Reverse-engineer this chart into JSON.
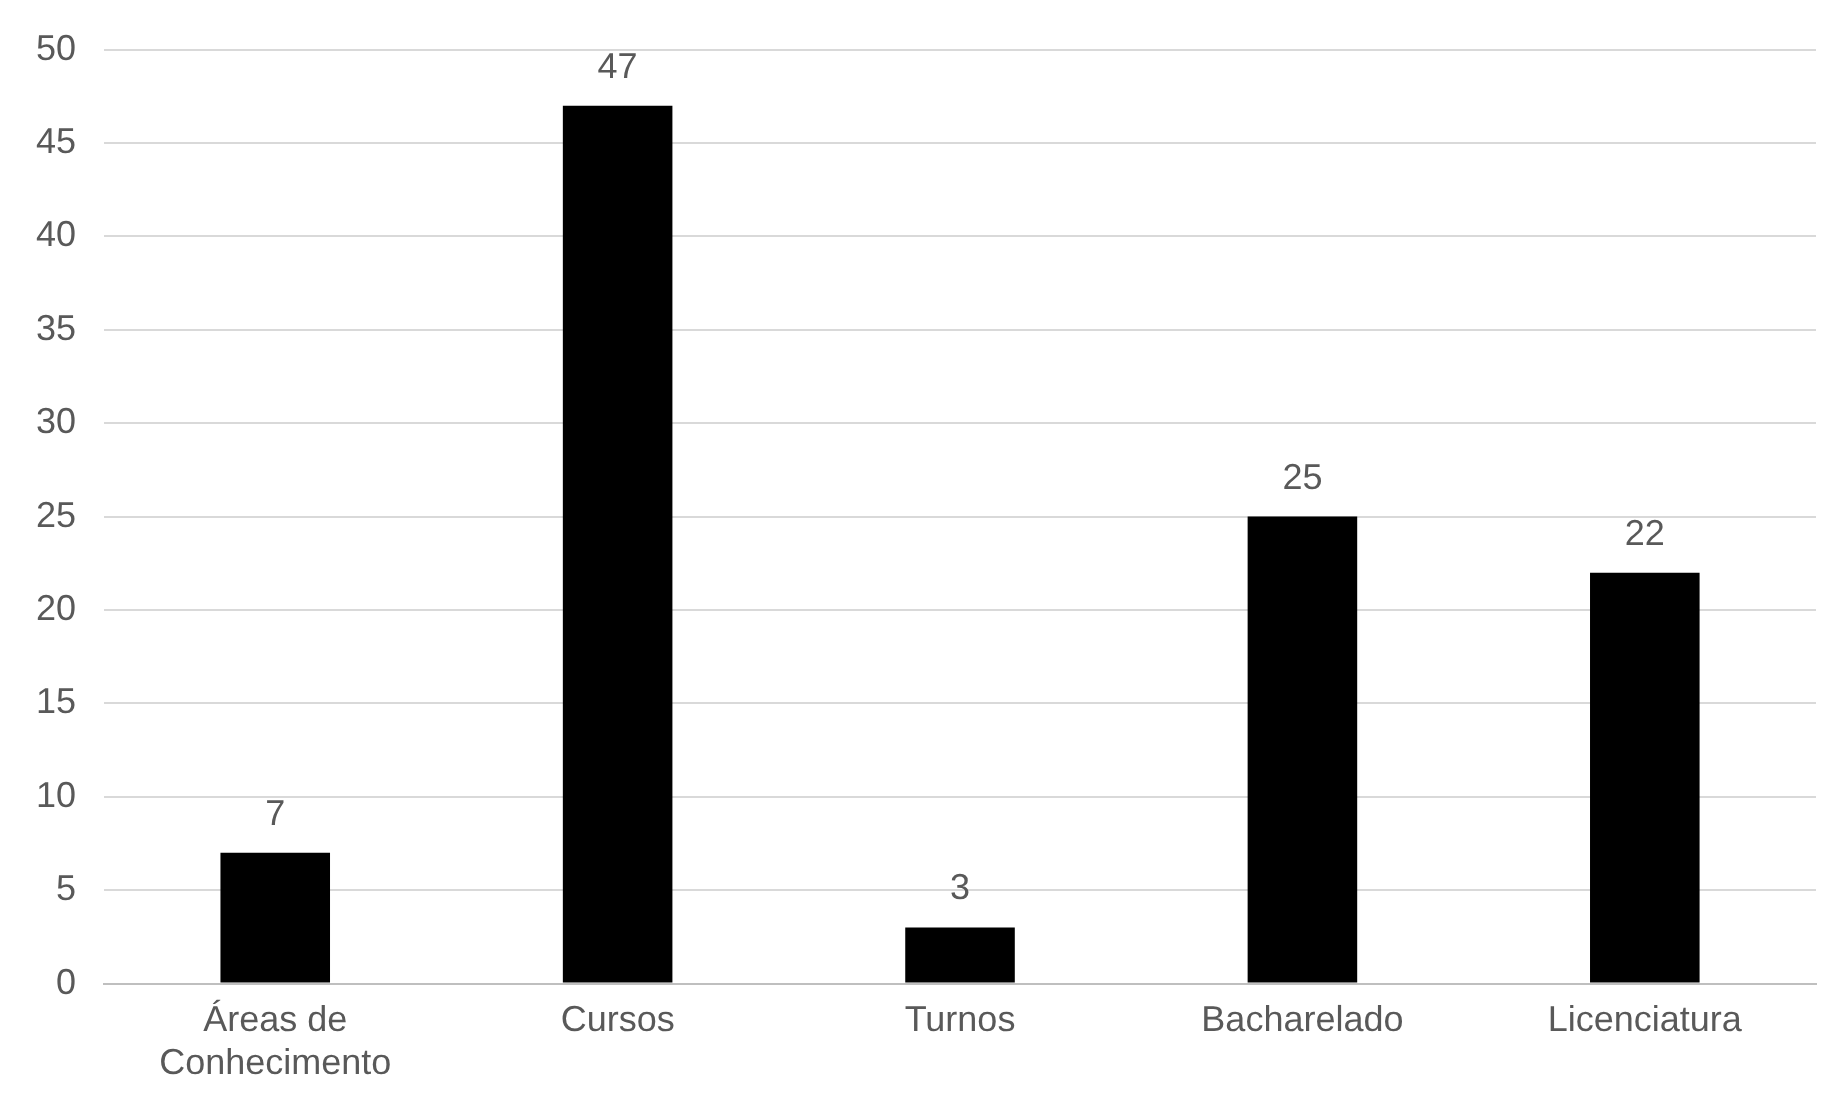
{
  "chart_data": {
    "type": "bar",
    "categories": [
      "Áreas de Conhecimento",
      "Cursos",
      "Turnos",
      "Bacharelado",
      "Licenciatura"
    ],
    "values": [
      7,
      47,
      3,
      25,
      22
    ],
    "color": "#000000",
    "ylim": [
      0,
      50
    ],
    "yticks": [
      0,
      5,
      10,
      15,
      20,
      25,
      30,
      35,
      40,
      45,
      50
    ],
    "grid": "y",
    "legend": false,
    "data_labels": true
  }
}
